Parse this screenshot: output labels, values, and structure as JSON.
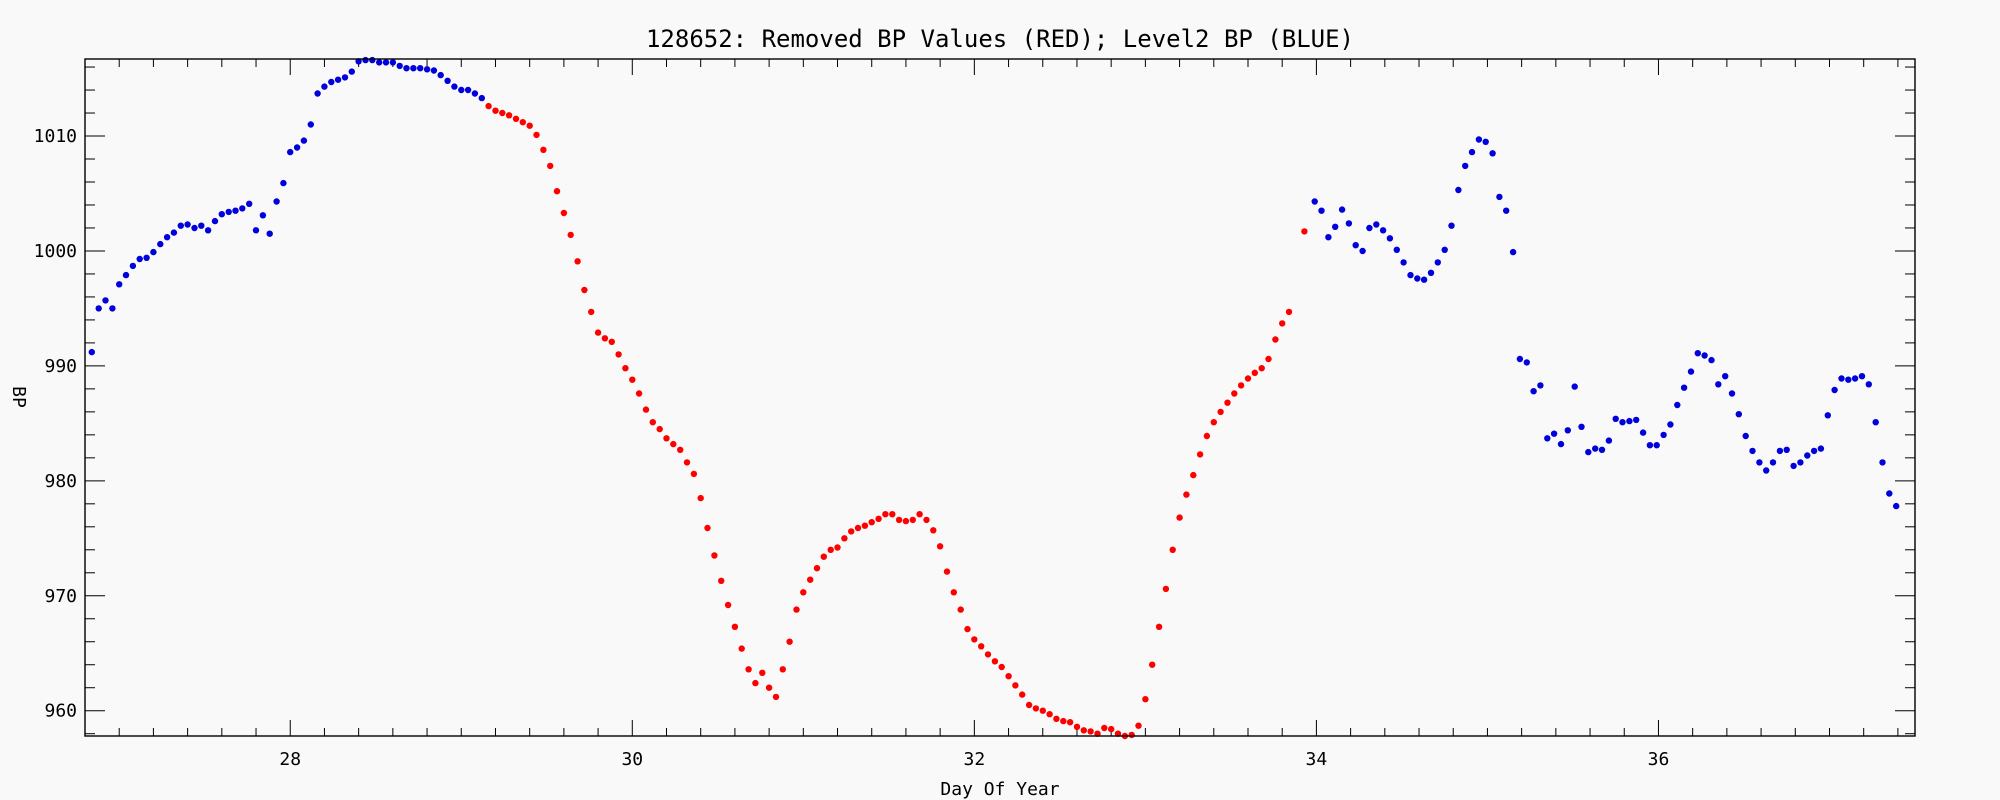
{
  "chart_data": {
    "type": "scatter",
    "title": "128652: Removed BP Values (RED); Level2 BP (BLUE)",
    "xlabel": "Day Of Year",
    "ylabel": "BP",
    "xlim": [
      26.8,
      37.5
    ],
    "ylim": [
      957.8,
      1016.7
    ],
    "xticks": [
      28,
      30,
      32,
      34,
      36
    ],
    "yticks": [
      960,
      970,
      980,
      990,
      1000,
      1010
    ],
    "grid": false,
    "colors": {
      "removed": "#ff0000",
      "level2": "#0000dd"
    },
    "series": [
      {
        "color": "#0000dd",
        "points": [
          [
            26.84,
            991.2
          ],
          [
            26.88,
            995.0
          ],
          [
            26.92,
            995.7
          ],
          [
            26.96,
            995.0
          ],
          [
            27.0,
            997.1
          ],
          [
            27.04,
            997.9
          ],
          [
            27.08,
            998.7
          ],
          [
            27.12,
            999.3
          ],
          [
            27.16,
            999.4
          ],
          [
            27.2,
            999.9
          ],
          [
            27.24,
            1000.6
          ],
          [
            27.28,
            1001.2
          ],
          [
            27.32,
            1001.6
          ],
          [
            27.36,
            1002.2
          ],
          [
            27.4,
            1002.3
          ],
          [
            27.44,
            1002.0
          ],
          [
            27.48,
            1002.2
          ],
          [
            27.52,
            1001.8
          ],
          [
            27.56,
            1002.6
          ],
          [
            27.6,
            1003.2
          ],
          [
            27.64,
            1003.4
          ],
          [
            27.68,
            1003.5
          ],
          [
            27.72,
            1003.7
          ],
          [
            27.76,
            1004.1
          ],
          [
            27.8,
            1001.8
          ],
          [
            27.84,
            1003.1
          ],
          [
            27.88,
            1001.5
          ],
          [
            27.92,
            1004.3
          ],
          [
            27.96,
            1005.9
          ],
          [
            28.0,
            1008.6
          ],
          [
            28.04,
            1009.0
          ],
          [
            28.08,
            1009.6
          ],
          [
            28.12,
            1011.0
          ],
          [
            28.16,
            1013.7
          ],
          [
            28.2,
            1014.3
          ],
          [
            28.24,
            1014.7
          ],
          [
            28.28,
            1014.9
          ],
          [
            28.32,
            1015.1
          ],
          [
            28.36,
            1015.6
          ],
          [
            28.4,
            1016.5
          ],
          [
            28.44,
            1016.6
          ],
          [
            28.48,
            1016.6
          ],
          [
            28.52,
            1016.4
          ],
          [
            28.56,
            1016.4
          ],
          [
            28.6,
            1016.4
          ],
          [
            28.64,
            1016.1
          ],
          [
            28.68,
            1015.9
          ],
          [
            28.72,
            1015.9
          ],
          [
            28.76,
            1015.9
          ],
          [
            28.8,
            1015.8
          ],
          [
            28.84,
            1015.7
          ],
          [
            28.88,
            1015.3
          ],
          [
            28.92,
            1014.8
          ],
          [
            28.96,
            1014.3
          ],
          [
            29.0,
            1014.0
          ],
          [
            29.04,
            1014.0
          ],
          [
            29.08,
            1013.7
          ],
          [
            29.12,
            1013.3
          ],
          [
            33.99,
            1004.3
          ],
          [
            34.03,
            1003.5
          ],
          [
            34.07,
            1001.2
          ],
          [
            34.11,
            1002.1
          ],
          [
            34.15,
            1003.6
          ],
          [
            34.19,
            1002.4
          ],
          [
            34.23,
            1000.5
          ],
          [
            34.27,
            1000.0
          ],
          [
            34.31,
            1002.0
          ],
          [
            34.35,
            1002.3
          ],
          [
            34.39,
            1001.8
          ],
          [
            34.43,
            1001.1
          ],
          [
            34.47,
            1000.1
          ],
          [
            34.51,
            999.0
          ],
          [
            34.55,
            997.9
          ],
          [
            34.59,
            997.6
          ],
          [
            34.63,
            997.5
          ],
          [
            34.67,
            998.1
          ],
          [
            34.71,
            999.0
          ],
          [
            34.75,
            1000.1
          ],
          [
            34.79,
            1002.2
          ],
          [
            34.83,
            1005.3
          ],
          [
            34.87,
            1007.4
          ],
          [
            34.91,
            1008.6
          ],
          [
            34.95,
            1009.7
          ],
          [
            34.99,
            1009.5
          ],
          [
            35.03,
            1008.5
          ],
          [
            35.07,
            1004.7
          ],
          [
            35.11,
            1003.5
          ],
          [
            35.15,
            999.9
          ],
          [
            35.19,
            990.6
          ],
          [
            35.23,
            990.3
          ],
          [
            35.27,
            987.8
          ],
          [
            35.31,
            988.3
          ],
          [
            35.35,
            983.7
          ],
          [
            35.39,
            984.1
          ],
          [
            35.43,
            983.2
          ],
          [
            35.47,
            984.4
          ],
          [
            35.51,
            988.2
          ],
          [
            35.55,
            984.7
          ],
          [
            35.59,
            982.5
          ],
          [
            35.63,
            982.8
          ],
          [
            35.67,
            982.7
          ],
          [
            35.71,
            983.5
          ],
          [
            35.75,
            985.4
          ],
          [
            35.79,
            985.1
          ],
          [
            35.83,
            985.2
          ],
          [
            35.87,
            985.3
          ],
          [
            35.91,
            984.2
          ],
          [
            35.95,
            983.1
          ],
          [
            35.99,
            983.1
          ],
          [
            36.03,
            984.0
          ],
          [
            36.07,
            984.9
          ],
          [
            36.11,
            986.6
          ],
          [
            36.15,
            988.1
          ],
          [
            36.19,
            989.5
          ],
          [
            36.23,
            991.1
          ],
          [
            36.27,
            990.9
          ],
          [
            36.31,
            990.5
          ],
          [
            36.35,
            988.4
          ],
          [
            36.39,
            989.1
          ],
          [
            36.43,
            987.6
          ],
          [
            36.47,
            985.8
          ],
          [
            36.51,
            983.9
          ],
          [
            36.55,
            982.6
          ],
          [
            36.59,
            981.6
          ],
          [
            36.63,
            980.9
          ],
          [
            36.67,
            981.6
          ],
          [
            36.71,
            982.6
          ],
          [
            36.75,
            982.7
          ],
          [
            36.79,
            981.3
          ],
          [
            36.83,
            981.6
          ],
          [
            36.87,
            982.2
          ],
          [
            36.91,
            982.6
          ],
          [
            36.95,
            982.8
          ],
          [
            36.99,
            985.7
          ],
          [
            37.03,
            987.9
          ],
          [
            37.07,
            988.9
          ],
          [
            37.11,
            988.8
          ],
          [
            37.15,
            988.9
          ],
          [
            37.19,
            989.1
          ],
          [
            37.23,
            988.4
          ],
          [
            37.27,
            985.1
          ],
          [
            37.31,
            981.6
          ],
          [
            37.35,
            978.9
          ],
          [
            37.39,
            977.8
          ]
        ]
      },
      {
        "color": "#ff0000",
        "points": [
          [
            29.16,
            1012.6
          ],
          [
            29.2,
            1012.2
          ],
          [
            29.24,
            1012.0
          ],
          [
            29.28,
            1011.8
          ],
          [
            29.32,
            1011.5
          ],
          [
            29.36,
            1011.2
          ],
          [
            29.4,
            1010.9
          ],
          [
            29.44,
            1010.1
          ],
          [
            29.48,
            1008.8
          ],
          [
            29.52,
            1007.4
          ],
          [
            29.56,
            1005.2
          ],
          [
            29.6,
            1003.3
          ],
          [
            29.64,
            1001.4
          ],
          [
            29.68,
            999.1
          ],
          [
            29.72,
            996.6
          ],
          [
            29.76,
            994.7
          ],
          [
            29.8,
            992.9
          ],
          [
            29.84,
            992.4
          ],
          [
            29.88,
            992.1
          ],
          [
            29.92,
            991.0
          ],
          [
            29.96,
            989.8
          ],
          [
            30.0,
            988.8
          ],
          [
            30.04,
            987.6
          ],
          [
            30.08,
            986.2
          ],
          [
            30.12,
            985.1
          ],
          [
            30.16,
            984.5
          ],
          [
            30.2,
            983.7
          ],
          [
            30.24,
            983.2
          ],
          [
            30.28,
            982.7
          ],
          [
            30.32,
            981.6
          ],
          [
            30.36,
            980.6
          ],
          [
            30.4,
            978.5
          ],
          [
            30.44,
            975.9
          ],
          [
            30.48,
            973.5
          ],
          [
            30.52,
            971.3
          ],
          [
            30.56,
            969.2
          ],
          [
            30.6,
            967.3
          ],
          [
            30.64,
            965.4
          ],
          [
            30.68,
            963.6
          ],
          [
            30.72,
            962.4
          ],
          [
            30.76,
            963.3
          ],
          [
            30.8,
            962.0
          ],
          [
            30.84,
            961.2
          ],
          [
            30.88,
            963.6
          ],
          [
            30.92,
            966.0
          ],
          [
            30.96,
            968.8
          ],
          [
            31.0,
            970.3
          ],
          [
            31.04,
            971.4
          ],
          [
            31.08,
            972.4
          ],
          [
            31.12,
            973.4
          ],
          [
            31.16,
            974.0
          ],
          [
            31.2,
            974.2
          ],
          [
            31.24,
            975.0
          ],
          [
            31.28,
            975.6
          ],
          [
            31.32,
            975.9
          ],
          [
            31.36,
            976.1
          ],
          [
            31.4,
            976.4
          ],
          [
            31.44,
            976.7
          ],
          [
            31.48,
            977.1
          ],
          [
            31.52,
            977.1
          ],
          [
            31.56,
            976.6
          ],
          [
            31.6,
            976.5
          ],
          [
            31.64,
            976.6
          ],
          [
            31.68,
            977.1
          ],
          [
            31.72,
            976.6
          ],
          [
            31.76,
            975.7
          ],
          [
            31.8,
            974.3
          ],
          [
            31.84,
            972.1
          ],
          [
            31.88,
            970.3
          ],
          [
            31.92,
            968.8
          ],
          [
            31.96,
            967.1
          ],
          [
            32.0,
            966.2
          ],
          [
            32.04,
            965.6
          ],
          [
            32.08,
            964.9
          ],
          [
            32.12,
            964.3
          ],
          [
            32.16,
            963.8
          ],
          [
            32.2,
            963.0
          ],
          [
            32.24,
            962.2
          ],
          [
            32.28,
            961.4
          ],
          [
            32.32,
            960.5
          ],
          [
            32.36,
            960.2
          ],
          [
            32.4,
            960.0
          ],
          [
            32.44,
            959.7
          ],
          [
            32.48,
            959.3
          ],
          [
            32.52,
            959.1
          ],
          [
            32.56,
            959.0
          ],
          [
            32.6,
            958.6
          ],
          [
            32.64,
            958.3
          ],
          [
            32.68,
            958.2
          ],
          [
            32.72,
            958.0
          ],
          [
            32.76,
            958.5
          ],
          [
            32.8,
            958.4
          ],
          [
            32.84,
            958.0
          ],
          [
            32.88,
            957.8
          ],
          [
            32.92,
            957.9
          ],
          [
            32.96,
            958.7
          ],
          [
            33.0,
            961.0
          ],
          [
            33.04,
            964.0
          ],
          [
            33.08,
            967.3
          ],
          [
            33.12,
            970.6
          ],
          [
            33.16,
            974.0
          ],
          [
            33.2,
            976.8
          ],
          [
            33.24,
            978.8
          ],
          [
            33.28,
            980.5
          ],
          [
            33.32,
            982.3
          ],
          [
            33.36,
            983.9
          ],
          [
            33.4,
            985.1
          ],
          [
            33.44,
            986.0
          ],
          [
            33.48,
            986.8
          ],
          [
            33.52,
            987.6
          ],
          [
            33.56,
            988.3
          ],
          [
            33.6,
            988.9
          ],
          [
            33.64,
            989.4
          ],
          [
            33.68,
            989.8
          ],
          [
            33.72,
            990.6
          ],
          [
            33.76,
            992.3
          ],
          [
            33.8,
            993.7
          ],
          [
            33.84,
            994.7
          ],
          [
            33.93,
            1001.7
          ]
        ]
      }
    ]
  }
}
